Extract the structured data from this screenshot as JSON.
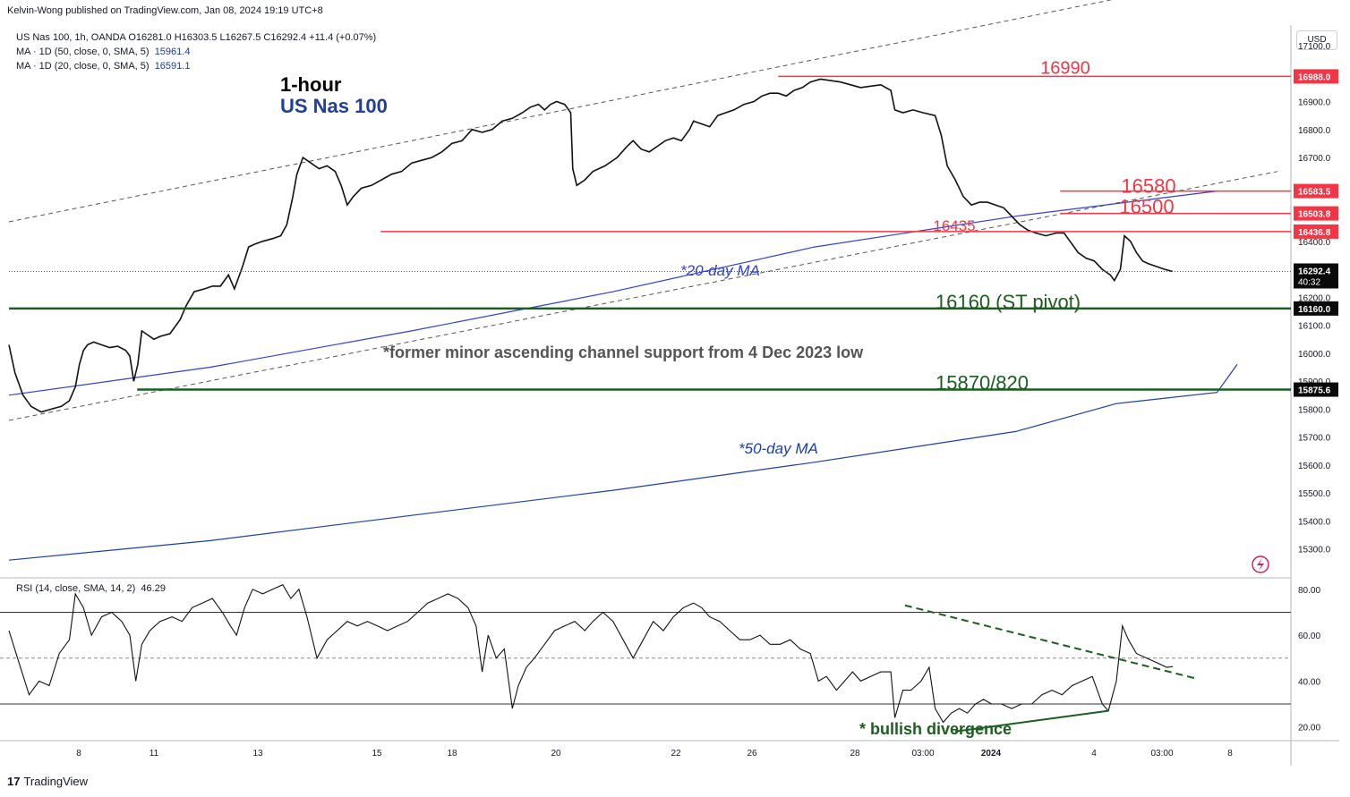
{
  "header": {
    "publisher": "Kelvin-Wong published on TradingView.com, Jan 08, 2024 19:19 UTC+8",
    "symbol_line": "US Nas 100, 1h, OANDA  O16281.0  H16303.5  L16267.5  C16292.4  +11.4 (+0.07%)",
    "ma50_label": "MA · 1D (50, close, 0, SMA, 5)",
    "ma50_value": "15961.4",
    "ma20_label": "MA · 1D (20, close, 0, SMA, 5)",
    "ma20_value": "16591.1",
    "currency": "USD"
  },
  "footer": {
    "brand": "TradingView",
    "logo_glyph": "17"
  },
  "chart_data": [
    {
      "type": "candlestick",
      "title": "1-hour",
      "subtitle": "US Nas 100",
      "ylim": [
        15200,
        17180
      ],
      "yticks": [
        17100,
        16900,
        16800,
        16700,
        16400,
        16200,
        16100,
        16000,
        15900,
        15800,
        15700,
        15600,
        15500,
        15400,
        15300
      ],
      "ytick_labels": [
        "17100.0",
        "16900.0",
        "16800.0",
        "16700.0",
        "16400.0",
        "16200.0",
        "16100.0",
        "16000.0",
        "15900.0",
        "15800.0",
        "15700.0",
        "15600.0",
        "15500.0",
        "15400.0",
        "15300.0"
      ],
      "xticks": [
        "8",
        "11",
        "13",
        "15",
        "18",
        "20",
        "22",
        "26",
        "28",
        "03:00",
        "2024",
        "4",
        "03:00",
        "8"
      ],
      "price_path": [
        [
          0,
          16030
        ],
        [
          6,
          15930
        ],
        [
          14,
          15850
        ],
        [
          22,
          15810
        ],
        [
          32,
          15790
        ],
        [
          42,
          15800
        ],
        [
          52,
          15810
        ],
        [
          60,
          15830
        ],
        [
          66,
          15880
        ],
        [
          70,
          15960
        ],
        [
          74,
          16010
        ],
        [
          78,
          16030
        ],
        [
          84,
          16040
        ],
        [
          92,
          16030
        ],
        [
          100,
          16020
        ],
        [
          108,
          16025
        ],
        [
          116,
          16010
        ],
        [
          120,
          15990
        ],
        [
          124,
          15900
        ],
        [
          128,
          15960
        ],
        [
          132,
          16080
        ],
        [
          136,
          16070
        ],
        [
          140,
          16060
        ],
        [
          144,
          16050
        ],
        [
          150,
          16060
        ],
        [
          160,
          16070
        ],
        [
          170,
          16120
        ],
        [
          176,
          16170
        ],
        [
          184,
          16220
        ],
        [
          194,
          16230
        ],
        [
          202,
          16240
        ],
        [
          210,
          16240
        ],
        [
          218,
          16280
        ],
        [
          224,
          16230
        ],
        [
          232,
          16310
        ],
        [
          238,
          16380
        ],
        [
          244,
          16390
        ],
        [
          252,
          16400
        ],
        [
          262,
          16410
        ],
        [
          270,
          16420
        ],
        [
          276,
          16460
        ],
        [
          282,
          16560
        ],
        [
          286,
          16640
        ],
        [
          292,
          16700
        ],
        [
          300,
          16680
        ],
        [
          308,
          16660
        ],
        [
          316,
          16670
        ],
        [
          324,
          16650
        ],
        [
          330,
          16600
        ],
        [
          336,
          16530
        ],
        [
          342,
          16560
        ],
        [
          350,
          16590
        ],
        [
          360,
          16600
        ],
        [
          370,
          16620
        ],
        [
          380,
          16640
        ],
        [
          390,
          16650
        ],
        [
          400,
          16680
        ],
        [
          410,
          16690
        ],
        [
          420,
          16700
        ],
        [
          430,
          16720
        ],
        [
          440,
          16750
        ],
        [
          450,
          16760
        ],
        [
          460,
          16800
        ],
        [
          470,
          16790
        ],
        [
          480,
          16800
        ],
        [
          490,
          16830
        ],
        [
          500,
          16840
        ],
        [
          510,
          16860
        ],
        [
          518,
          16880
        ],
        [
          526,
          16890
        ],
        [
          532,
          16870
        ],
        [
          538,
          16890
        ],
        [
          544,
          16900
        ],
        [
          552,
          16890
        ],
        [
          558,
          16860
        ],
        [
          560,
          16660
        ],
        [
          564,
          16600
        ],
        [
          572,
          16620
        ],
        [
          580,
          16650
        ],
        [
          592,
          16670
        ],
        [
          604,
          16700
        ],
        [
          614,
          16740
        ],
        [
          620,
          16760
        ],
        [
          628,
          16730
        ],
        [
          636,
          16720
        ],
        [
          644,
          16740
        ],
        [
          652,
          16760
        ],
        [
          660,
          16770
        ],
        [
          668,
          16760
        ],
        [
          676,
          16800
        ],
        [
          680,
          16830
        ],
        [
          688,
          16820
        ],
        [
          696,
          16810
        ],
        [
          704,
          16850
        ],
        [
          712,
          16860
        ],
        [
          720,
          16870
        ],
        [
          730,
          16890
        ],
        [
          740,
          16900
        ],
        [
          748,
          16920
        ],
        [
          756,
          16930
        ],
        [
          764,
          16930
        ],
        [
          772,
          16920
        ],
        [
          780,
          16940
        ],
        [
          788,
          16950
        ],
        [
          796,
          16970
        ],
        [
          806,
          16980
        ],
        [
          816,
          16975
        ],
        [
          826,
          16970
        ],
        [
          836,
          16960
        ],
        [
          846,
          16950
        ],
        [
          856,
          16955
        ],
        [
          866,
          16960
        ],
        [
          876,
          16940
        ],
        [
          880,
          16870
        ],
        [
          888,
          16860
        ],
        [
          898,
          16870
        ],
        [
          908,
          16860
        ],
        [
          920,
          16850
        ],
        [
          926,
          16780
        ],
        [
          932,
          16670
        ],
        [
          940,
          16620
        ],
        [
          948,
          16560
        ],
        [
          956,
          16530
        ],
        [
          964,
          16540
        ],
        [
          972,
          16540
        ],
        [
          980,
          16530
        ],
        [
          988,
          16520
        ],
        [
          996,
          16490
        ],
        [
          1004,
          16460
        ],
        [
          1012,
          16440
        ],
        [
          1020,
          16430
        ],
        [
          1030,
          16420
        ],
        [
          1040,
          16430
        ],
        [
          1048,
          16430
        ],
        [
          1054,
          16400
        ],
        [
          1062,
          16360
        ],
        [
          1070,
          16340
        ],
        [
          1078,
          16330
        ],
        [
          1086,
          16300
        ],
        [
          1094,
          16280
        ],
        [
          1098,
          16260
        ],
        [
          1104,
          16300
        ],
        [
          1108,
          16420
        ],
        [
          1114,
          16400
        ],
        [
          1120,
          16360
        ],
        [
          1126,
          16330
        ],
        [
          1132,
          16320
        ],
        [
          1140,
          16310
        ],
        [
          1148,
          16300
        ],
        [
          1156,
          16292.4
        ]
      ],
      "last_price": "16292.4",
      "countdown": "40:32",
      "levels": [
        {
          "name": "16990",
          "price": 16990,
          "price_label": "16988.0",
          "color": "#f23645",
          "x_from": 0.6
        },
        {
          "name": "16580",
          "price": 16580,
          "price_label": "16583.5",
          "color": "#f23645",
          "x_from": 0.82
        },
        {
          "name": "16500",
          "price": 16500,
          "price_label": "16503.8",
          "color": "#f23645",
          "x_from": 0.82
        },
        {
          "name": "16435",
          "price": 16435,
          "price_label": "16436.8",
          "color": "#f23645",
          "x_from": 0.29
        },
        {
          "name": "16160 (ST pivot)",
          "price": 16160,
          "price_label": "16160.0",
          "color": "#1b5e20",
          "x_from": 0.0
        },
        {
          "name": "15870/820",
          "price": 15870,
          "price_label": "15875.6",
          "color": "#1b5e20",
          "x_from": 0.1
        }
      ],
      "ma20": {
        "label": "*20-day MA",
        "color": "#2f3fd6",
        "points": [
          [
            0,
            15850
          ],
          [
            200,
            15950
          ],
          [
            400,
            16080
          ],
          [
            600,
            16220
          ],
          [
            800,
            16380
          ],
          [
            1000,
            16490
          ],
          [
            1200,
            16580
          ]
        ]
      },
      "ma50": {
        "label": "*50-day MA",
        "color": "#1a3fa8",
        "points": [
          [
            0,
            15260
          ],
          [
            200,
            15330
          ],
          [
            400,
            15420
          ],
          [
            600,
            15510
          ],
          [
            800,
            15610
          ],
          [
            1000,
            15720
          ],
          [
            1100,
            15820
          ],
          [
            1200,
            15860
          ],
          [
            1220,
            15960
          ]
        ]
      },
      "channel": {
        "upper": [
          [
            0,
            16470
          ],
          [
            1200,
            17340
          ]
        ],
        "lower": [
          [
            0,
            15760
          ],
          [
            1260,
            16650
          ]
        ]
      },
      "annotations": [
        "*former minor ascending channel support from 4 Dec 2023 low"
      ]
    },
    {
      "type": "line",
      "title": "RSI (14, close, SMA, 14, 2)",
      "current_value": "46.29",
      "ylim": [
        14,
        85
      ],
      "yticks": [
        80,
        60,
        40,
        20
      ],
      "ytick_labels": [
        "80.00",
        "60.00",
        "40.00",
        "20.00"
      ],
      "bands": [
        70,
        50,
        30
      ],
      "rsi": [
        [
          0,
          62
        ],
        [
          10,
          48
        ],
        [
          20,
          34
        ],
        [
          30,
          40
        ],
        [
          40,
          38
        ],
        [
          50,
          52
        ],
        [
          60,
          58
        ],
        [
          66,
          78
        ],
        [
          74,
          72
        ],
        [
          82,
          60
        ],
        [
          92,
          68
        ],
        [
          102,
          70
        ],
        [
          112,
          66
        ],
        [
          120,
          60
        ],
        [
          126,
          40
        ],
        [
          132,
          56
        ],
        [
          140,
          62
        ],
        [
          150,
          66
        ],
        [
          162,
          68
        ],
        [
          172,
          66
        ],
        [
          182,
          72
        ],
        [
          192,
          74
        ],
        [
          202,
          76
        ],
        [
          212,
          70
        ],
        [
          220,
          64
        ],
        [
          226,
          60
        ],
        [
          234,
          72
        ],
        [
          242,
          80
        ],
        [
          252,
          78
        ],
        [
          262,
          80
        ],
        [
          272,
          82
        ],
        [
          280,
          76
        ],
        [
          288,
          80
        ],
        [
          296,
          68
        ],
        [
          306,
          50
        ],
        [
          316,
          58
        ],
        [
          326,
          62
        ],
        [
          336,
          66
        ],
        [
          346,
          64
        ],
        [
          356,
          66
        ],
        [
          366,
          64
        ],
        [
          376,
          62
        ],
        [
          386,
          64
        ],
        [
          396,
          66
        ],
        [
          406,
          70
        ],
        [
          416,
          74
        ],
        [
          426,
          76
        ],
        [
          436,
          78
        ],
        [
          446,
          76
        ],
        [
          456,
          72
        ],
        [
          464,
          64
        ],
        [
          470,
          44
        ],
        [
          476,
          60
        ],
        [
          484,
          50
        ],
        [
          492,
          54
        ],
        [
          500,
          28
        ],
        [
          506,
          38
        ],
        [
          514,
          46
        ],
        [
          522,
          50
        ],
        [
          532,
          56
        ],
        [
          542,
          62
        ],
        [
          552,
          64
        ],
        [
          562,
          66
        ],
        [
          572,
          62
        ],
        [
          580,
          66
        ],
        [
          590,
          70
        ],
        [
          600,
          66
        ],
        [
          610,
          58
        ],
        [
          620,
          50
        ],
        [
          630,
          58
        ],
        [
          640,
          66
        ],
        [
          650,
          62
        ],
        [
          660,
          68
        ],
        [
          670,
          72
        ],
        [
          680,
          74
        ],
        [
          688,
          72
        ],
        [
          696,
          68
        ],
        [
          706,
          66
        ],
        [
          716,
          62
        ],
        [
          726,
          58
        ],
        [
          736,
          58
        ],
        [
          746,
          60
        ],
        [
          756,
          56
        ],
        [
          766,
          56
        ],
        [
          776,
          58
        ],
        [
          786,
          54
        ],
        [
          796,
          52
        ],
        [
          804,
          40
        ],
        [
          812,
          42
        ],
        [
          822,
          36
        ],
        [
          830,
          40
        ],
        [
          838,
          44
        ],
        [
          846,
          40
        ],
        [
          856,
          42
        ],
        [
          866,
          44
        ],
        [
          876,
          44
        ],
        [
          880,
          24
        ],
        [
          888,
          36
        ],
        [
          896,
          36
        ],
        [
          906,
          40
        ],
        [
          914,
          46
        ],
        [
          920,
          28
        ],
        [
          928,
          22
        ],
        [
          936,
          26
        ],
        [
          944,
          28
        ],
        [
          952,
          26
        ],
        [
          960,
          30
        ],
        [
          968,
          32
        ],
        [
          976,
          30
        ],
        [
          986,
          30
        ],
        [
          996,
          28
        ],
        [
          1006,
          30
        ],
        [
          1016,
          30
        ],
        [
          1026,
          34
        ],
        [
          1036,
          36
        ],
        [
          1046,
          34
        ],
        [
          1056,
          38
        ],
        [
          1066,
          40
        ],
        [
          1076,
          42
        ],
        [
          1086,
          30
        ],
        [
          1092,
          27
        ],
        [
          1100,
          40
        ],
        [
          1106,
          64
        ],
        [
          1112,
          58
        ],
        [
          1120,
          52
        ],
        [
          1130,
          50
        ],
        [
          1140,
          48
        ],
        [
          1150,
          46
        ],
        [
          1156,
          46.29
        ]
      ],
      "trendline_resistance": {
        "points": [
          [
            890,
            73
          ],
          [
            1180,
            41
          ]
        ],
        "color": "#1b5e20"
      },
      "trendline_support": {
        "points": [
          [
            940,
            18
          ],
          [
            1092,
            27
          ]
        ],
        "color": "#1b5e20"
      },
      "annotations": [
        "* bullish divergence"
      ]
    }
  ]
}
